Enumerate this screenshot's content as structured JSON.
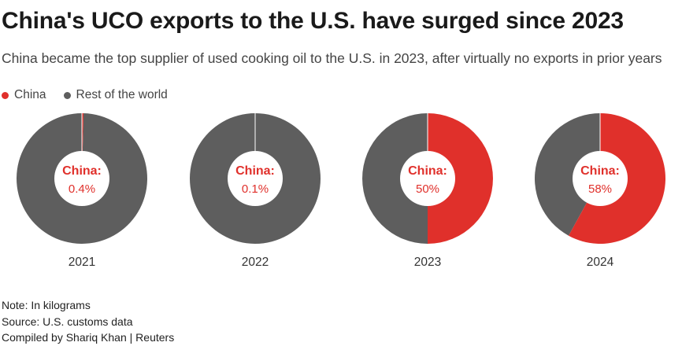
{
  "header": {
    "title": "China's UCO exports to the U.S. have surged since 2023",
    "subtitle": "China became the top supplier of used cooking oil to the U.S. in 2023, after virtually no exports in prior years"
  },
  "legend": {
    "items": [
      {
        "label": "China",
        "color": "#e0302b"
      },
      {
        "label": "Rest of the world",
        "color": "#5e5e5e"
      }
    ]
  },
  "chart_data": {
    "type": "pie",
    "center_label": "China:",
    "series_colors": {
      "china": "#e0302b",
      "rest": "#5e5e5e"
    },
    "charts": [
      {
        "year": "2021",
        "china_label": "0.4%",
        "china": 0.4,
        "rest": 99.6
      },
      {
        "year": "2022",
        "china_label": "0.1%",
        "china": 0.1,
        "rest": 99.9
      },
      {
        "year": "2023",
        "china_label": "50%",
        "china": 50,
        "rest": 50
      },
      {
        "year": "2024",
        "china_label": "58%",
        "china": 58,
        "rest": 42
      }
    ]
  },
  "footer": {
    "note": "Note: In kilograms",
    "source": "Source: U.S. customs data",
    "credit": "Compiled by Shariq Khan | Reuters"
  }
}
